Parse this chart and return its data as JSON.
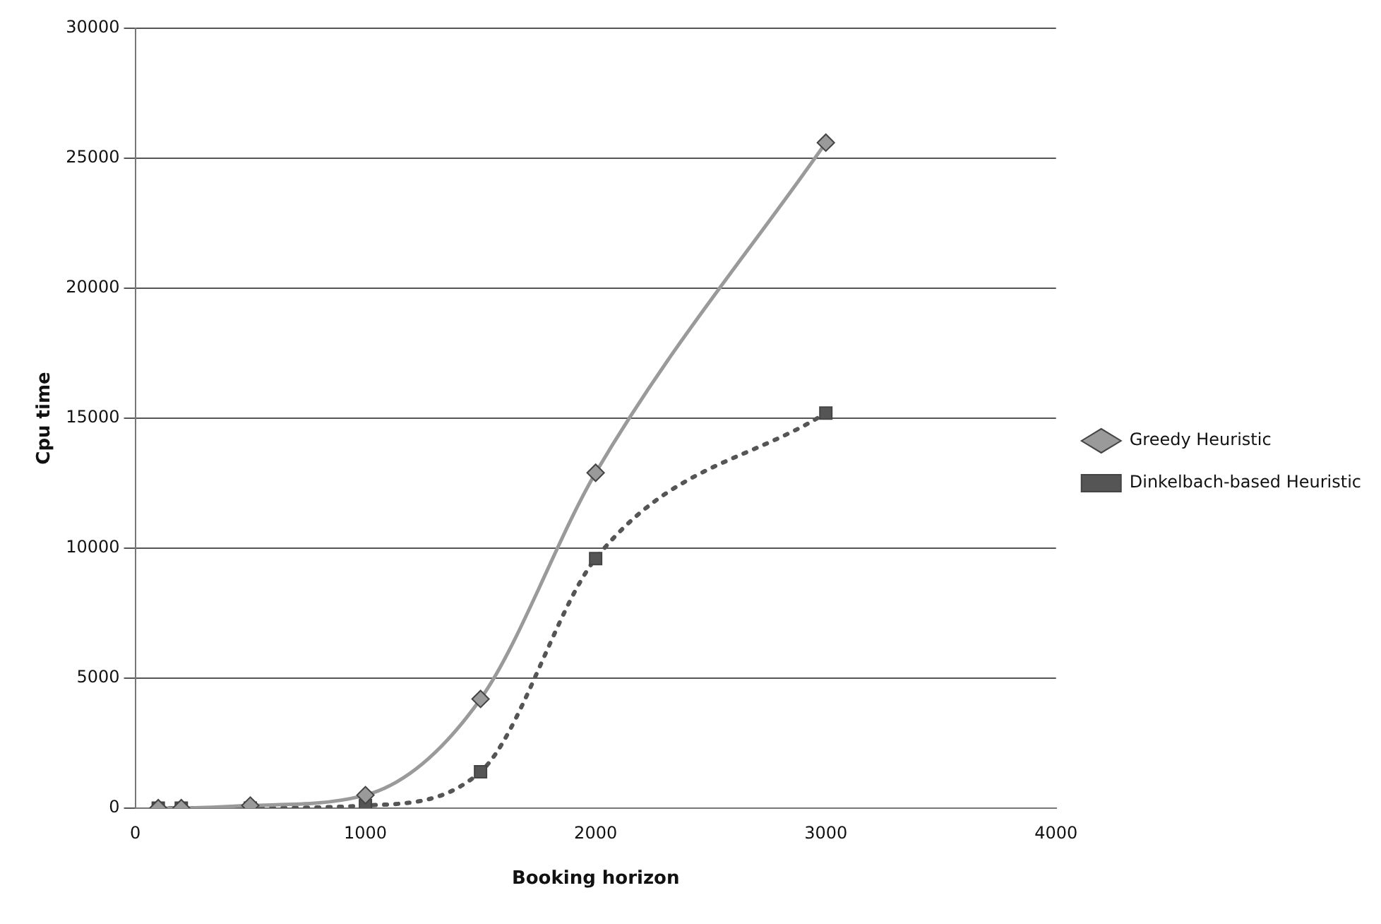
{
  "chart_data": {
    "type": "line",
    "xlabel": "Booking horizon",
    "ylabel": "Cpu time",
    "x": [
      100,
      200,
      500,
      1000,
      1500,
      2000,
      3000
    ],
    "series": [
      {
        "name": "Greedy Heuristic",
        "color": "#9a9a9a",
        "values": [
          0,
          0,
          100,
          500,
          4200,
          12900,
          25600
        ],
        "marker": "diamond",
        "line_style": "solid"
      },
      {
        "name": "Dinkelbach-based Heuristic",
        "color": "#555555",
        "values": [
          0,
          0,
          0,
          100,
          1400,
          9600,
          15200
        ],
        "marker": "square",
        "line_style": "dotted"
      }
    ],
    "xlim": [
      0,
      4000
    ],
    "xticks": [
      0,
      1000,
      2000,
      3000,
      4000
    ],
    "ylim": [
      0,
      30000
    ],
    "yticks": [
      0,
      5000,
      10000,
      15000,
      20000,
      25000,
      30000
    ],
    "grid": "y",
    "legend": "right"
  }
}
